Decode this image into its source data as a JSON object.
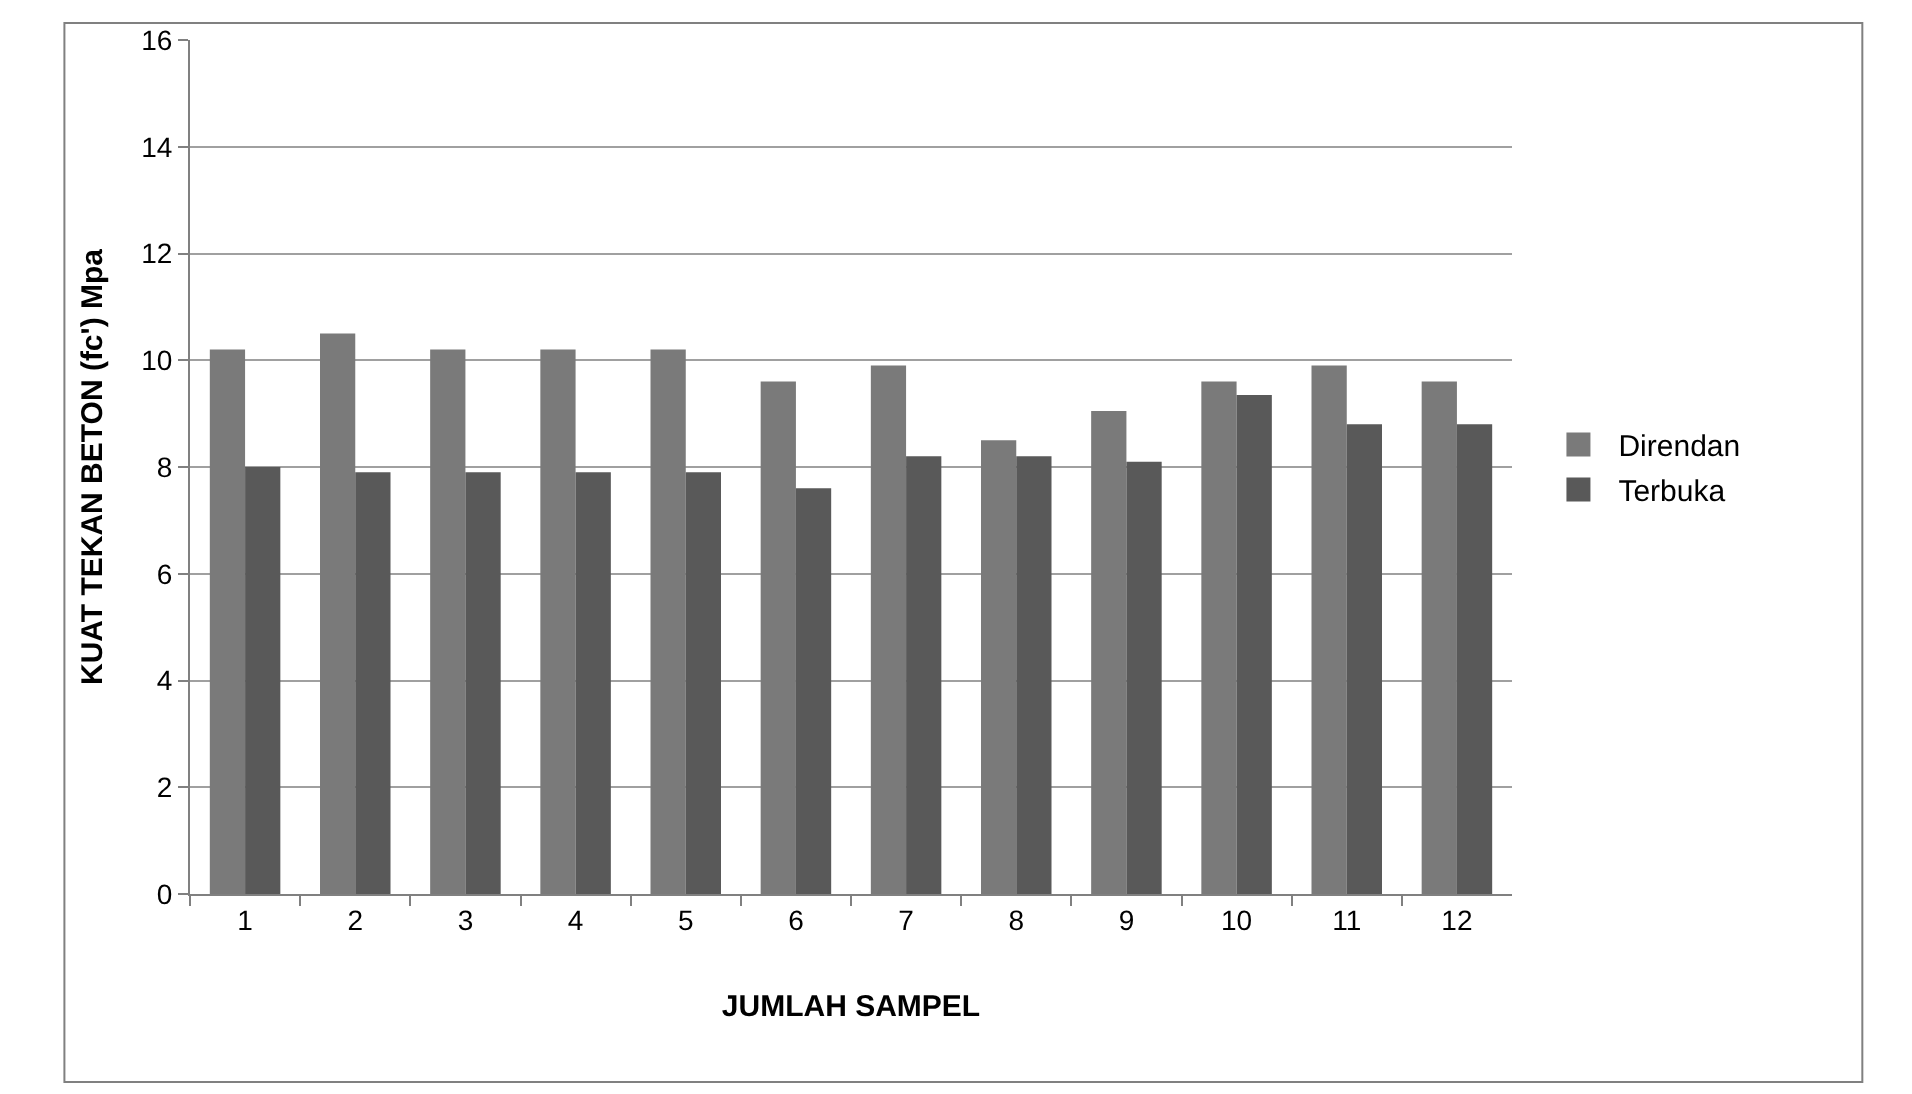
{
  "chart_data": {
    "type": "bar",
    "xlabel": "JUMLAH SAMPEL",
    "ylabel": "KUAT TEKAN BETON (fc') Mpa",
    "categories": [
      "1",
      "2",
      "3",
      "4",
      "5",
      "6",
      "7",
      "8",
      "9",
      "10",
      "11",
      "12"
    ],
    "series": [
      {
        "name": "Direndan",
        "color": "#7a7a7a",
        "values": [
          10.2,
          10.5,
          10.2,
          10.2,
          10.2,
          9.6,
          9.9,
          8.5,
          9.05,
          9.6,
          9.9,
          9.6
        ]
      },
      {
        "name": "Terbuka",
        "color": "#595959",
        "values": [
          8.0,
          7.9,
          7.9,
          7.9,
          7.9,
          7.6,
          8.2,
          8.2,
          8.1,
          9.35,
          8.8,
          8.8
        ]
      }
    ],
    "ylim": [
      0,
      16
    ],
    "yticks": [
      0,
      2,
      4,
      6,
      8,
      10,
      12,
      14,
      16
    ],
    "grid": "y",
    "legend": "right"
  }
}
